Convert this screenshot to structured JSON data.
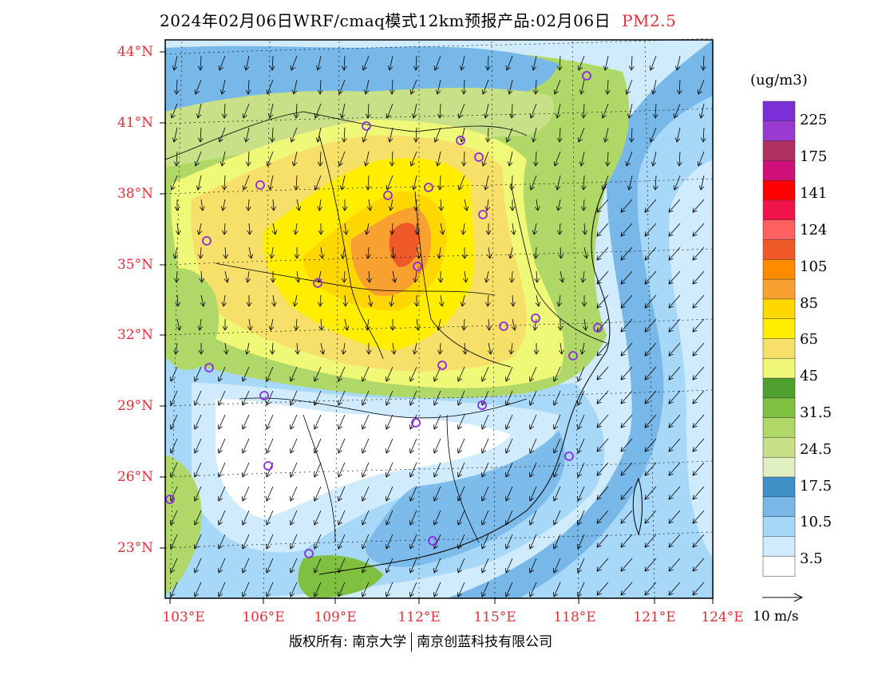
{
  "title": {
    "main": "2024年02月06日WRF/cmaq模式12km预报产品:02月06日",
    "pollutant": "PM2.5"
  },
  "map": {
    "lat_labels": [
      "44°N",
      "41°N",
      "38°N",
      "35°N",
      "32°N",
      "29°N",
      "26°N",
      "23°N"
    ],
    "lon_labels": [
      "103°E",
      "106°E",
      "109°E",
      "112°E",
      "115°E",
      "118°E",
      "121°E",
      "124°E"
    ],
    "station_marker_color": "#8a2be2"
  },
  "legend": {
    "unit": "(ug/m3)",
    "colors": [
      "#7b2fd6",
      "#9a3ad0",
      "#b03060",
      "#d0107a",
      "#ff0000",
      "#f0144a",
      "#ff6060",
      "#f05a28",
      "#ff8c00",
      "#f8a030",
      "#ffd700",
      "#ffee00",
      "#f6e06a",
      "#f0f878",
      "#50a030",
      "#80c040",
      "#b0d868",
      "#c8e088",
      "#e0f0c0",
      "#4090c8",
      "#78b8e8",
      "#a8d8f8",
      "#d0ecfc",
      "#ffffff"
    ],
    "labels": [
      "225",
      "175",
      "141",
      "124",
      "105",
      "85",
      "65",
      "45",
      "31.5",
      "24.5",
      "17.5",
      "10.5",
      "3.5"
    ]
  },
  "wind_reference": {
    "label": "10 m/s"
  },
  "footer": {
    "owner1": "版权所有: 南京大学",
    "owner2": "南京创蓝科技有限公司"
  }
}
